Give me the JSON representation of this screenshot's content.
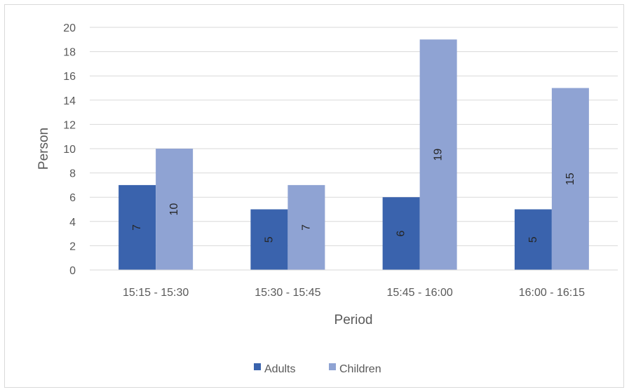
{
  "chart_data": {
    "type": "bar",
    "categories": [
      "15:15 - 15:30",
      "15:30 - 15:45",
      "15:45 - 16:00",
      "16:00 - 16:15"
    ],
    "series": [
      {
        "name": "Adults",
        "values": [
          7,
          5,
          6,
          5
        ],
        "color": "#3a63ad"
      },
      {
        "name": "Children",
        "values": [
          10,
          7,
          19,
          15
        ],
        "color": "#8fa3d3"
      }
    ],
    "title": "",
    "xlabel": "Period",
    "ylabel": "Person",
    "ylim": [
      0,
      20
    ],
    "yticks": [
      0,
      2,
      4,
      6,
      8,
      10,
      12,
      14,
      16,
      18,
      20
    ],
    "grid": true,
    "legend_position": "bottom",
    "gridline_color": "#d9d9d9"
  }
}
